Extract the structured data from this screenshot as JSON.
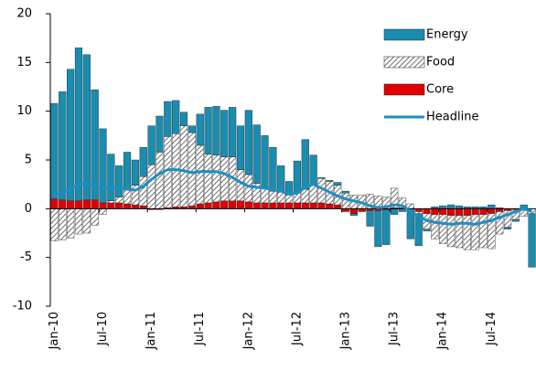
{
  "chart_data": {
    "type": "stacked_bar_line",
    "categories": [
      "Jan-10",
      null,
      null,
      null,
      null,
      null,
      "Jul-10",
      null,
      null,
      null,
      null,
      null,
      "Jan-11",
      null,
      null,
      null,
      null,
      null,
      "Jul-11",
      null,
      null,
      null,
      null,
      null,
      "Jan-12",
      null,
      null,
      null,
      null,
      null,
      "Jul-12",
      null,
      null,
      null,
      null,
      null,
      "Jan-13",
      null,
      null,
      null,
      null,
      null,
      "Jul-13",
      null,
      null,
      null,
      null,
      null,
      "Jan-14",
      null,
      null,
      null,
      null,
      null,
      "Jul-14",
      null,
      null,
      null,
      null,
      null
    ],
    "series": [
      {
        "name": "Energy",
        "color": "#1a8cb0",
        "values": [
          9.8,
          11.1,
          13.5,
          15.7,
          14.9,
          11.3,
          7.6,
          4.8,
          3.2,
          3.8,
          2.6,
          3.0,
          4.0,
          3.7,
          3.6,
          3.4,
          1.4,
          0.7,
          3.2,
          4.8,
          5.0,
          4.8,
          5.1,
          4.5,
          6.6,
          6.0,
          5.4,
          4.5,
          2.7,
          1.4,
          3.3,
          5.1,
          3.0,
          0.1,
          0.1,
          0.3,
          0.2,
          -0.2,
          0.0,
          -1.6,
          -3.7,
          -3.6,
          -0.6,
          -0.3,
          -3.1,
          -3.3,
          -0.2,
          0.2,
          0.3,
          0.4,
          0.3,
          0.2,
          0.2,
          0.2,
          0.4,
          0.1,
          -0.2,
          -0.2,
          0.4,
          -5.5
        ]
      },
      {
        "name": "Food",
        "color": "#ffffff",
        "values": [
          -3.3,
          -3.2,
          -3.0,
          -2.6,
          -2.5,
          -1.7,
          -0.6,
          0.2,
          0.6,
          1.5,
          2.0,
          3.0,
          4.5,
          5.8,
          7.3,
          7.5,
          8.3,
          7.5,
          6.0,
          5.0,
          4.8,
          4.5,
          4.5,
          3.2,
          2.8,
          2.0,
          1.5,
          1.2,
          1.1,
          0.8,
          1.0,
          1.4,
          1.9,
          2.5,
          2.3,
          2.0,
          1.6,
          1.4,
          1.4,
          1.5,
          1.3,
          1.2,
          2.0,
          1.0,
          0.5,
          -0.2,
          -1.6,
          -2.5,
          -3.0,
          -3.2,
          -3.3,
          -3.5,
          -3.6,
          -3.4,
          -3.6,
          -2.3,
          -1.7,
          -1.0,
          -0.8,
          -0.5
        ]
      },
      {
        "name": "Core",
        "color": "#e00000",
        "values": [
          1.0,
          0.9,
          0.8,
          0.8,
          0.9,
          0.9,
          0.6,
          0.6,
          0.6,
          0.5,
          0.4,
          0.3,
          -0.1,
          -0.1,
          0.1,
          0.2,
          0.2,
          0.3,
          0.5,
          0.6,
          0.7,
          0.8,
          0.8,
          0.8,
          0.7,
          0.6,
          0.6,
          0.6,
          0.6,
          0.6,
          0.6,
          0.6,
          0.6,
          0.6,
          0.5,
          0.4,
          -0.3,
          -0.5,
          -0.3,
          -0.2,
          -0.2,
          -0.1,
          0.1,
          0.1,
          0.0,
          -0.3,
          -0.5,
          -0.6,
          -0.6,
          -0.7,
          -0.7,
          -0.7,
          -0.6,
          -0.6,
          -0.5,
          -0.3,
          -0.2,
          -0.1,
          0.0,
          0.0
        ]
      },
      {
        "name": "Headline",
        "color": "#1c8fc0",
        "line": true,
        "values": [
          1.3,
          1.6,
          2.0,
          2.5,
          2.6,
          2.3,
          2.1,
          2.2,
          2.1,
          2.0,
          1.9,
          2.3,
          3.0,
          3.6,
          4.0,
          4.0,
          3.9,
          3.7,
          3.8,
          3.8,
          3.8,
          3.6,
          3.2,
          2.7,
          2.3,
          2.2,
          2.1,
          2.0,
          1.8,
          1.5,
          1.6,
          2.2,
          2.5,
          2.1,
          1.7,
          1.3,
          1.0,
          0.8,
          0.6,
          0.3,
          0.1,
          0.2,
          0.4,
          0.3,
          -0.3,
          -0.8,
          -1.2,
          -1.4,
          -1.5,
          -1.6,
          -1.5,
          -1.5,
          -1.6,
          -1.4,
          -1.2,
          -0.9,
          -0.6,
          -0.3,
          0.0,
          -0.3
        ]
      }
    ],
    "ylim": [
      -10,
      20
    ],
    "yticks": [
      -10,
      -5,
      0,
      5,
      10,
      15,
      20
    ],
    "legend": "upper right",
    "grid": false
  }
}
